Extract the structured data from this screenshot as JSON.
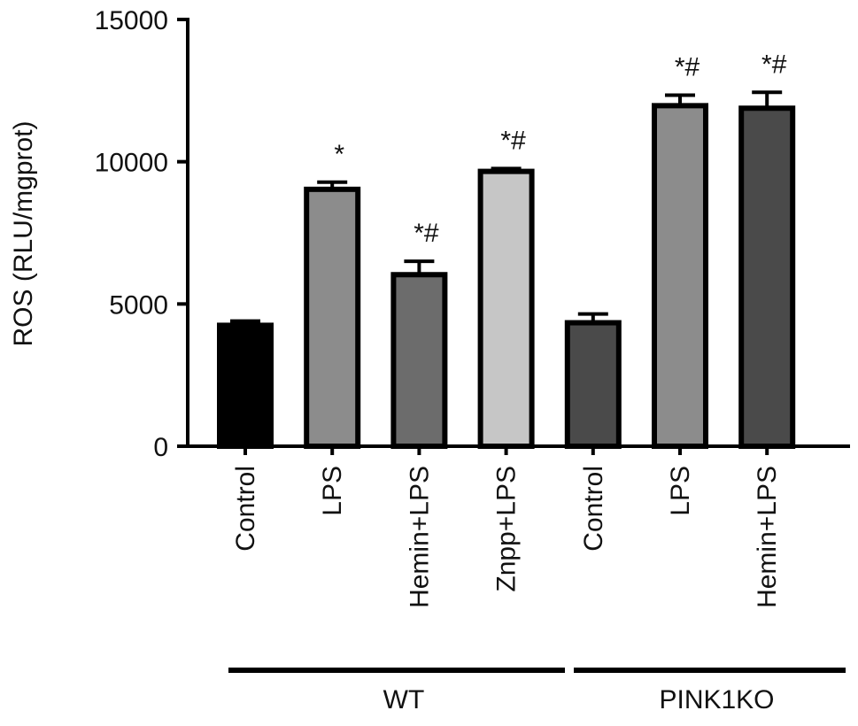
{
  "chart_data": {
    "type": "bar",
    "title": "",
    "xlabel": "",
    "ylabel": "ROS (RLU/mgprot)",
    "ylim": [
      0,
      15000
    ],
    "yticks": [
      "0",
      "5000",
      "10000",
      "15000"
    ],
    "grid": false,
    "categories": [
      "Control",
      "LPS",
      "Hemin+LPS",
      "Znpp+LPS",
      "Control",
      "LPS",
      "Hemin+LPS"
    ],
    "values": [
      4250,
      9030,
      6030,
      9660,
      4340,
      11970,
      11880
    ],
    "errors": [
      150,
      250,
      470,
      100,
      310,
      370,
      560
    ],
    "annotations": [
      "",
      "*",
      "*#",
      "*#",
      "",
      "*#",
      "*#"
    ],
    "colors": [
      "#000000",
      "#8c8c8c",
      "#6c6c6c",
      "#c6c6c6",
      "#4a4a4a",
      "#8c8c8c",
      "#4a4a4a"
    ],
    "groups": [
      {
        "label": "WT",
        "members": [
          0,
          1,
          2,
          3
        ]
      },
      {
        "label": "PINK1KO",
        "members": [
          4,
          5,
          6
        ]
      }
    ]
  }
}
